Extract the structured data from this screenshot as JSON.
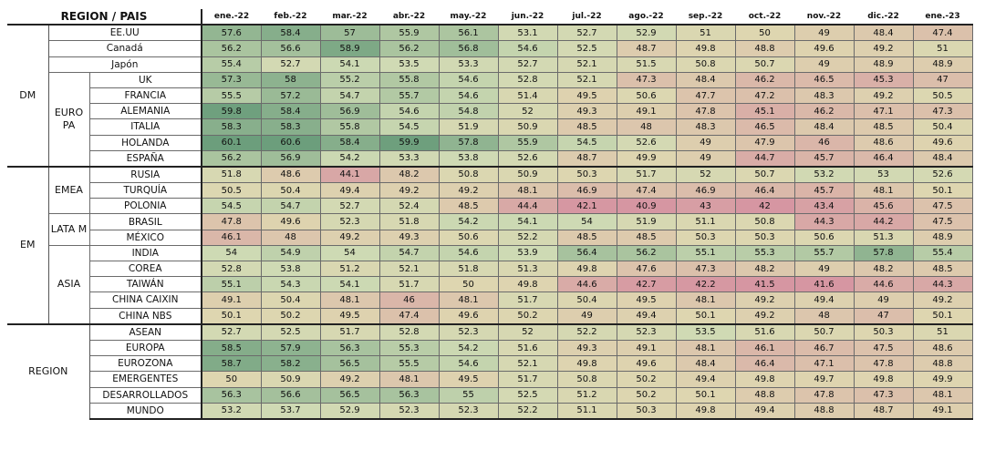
{
  "header": {
    "corner_label": "REGION / PAIS"
  },
  "months": [
    "ene.-22",
    "feb.-22",
    "mar.-22",
    "abr.-22",
    "may.-22",
    "jun.-22",
    "jul.-22",
    "ago.-22",
    "sep.-22",
    "oct.-22",
    "nov.-22",
    "dic.-22",
    "ene.-23"
  ],
  "groups": {
    "dm": "DM",
    "em": "EM",
    "region": "REGION",
    "europa": "EURO PA",
    "emea": "EMEA",
    "latam": "LATA M",
    "asia": "ASIA"
  },
  "rows": [
    {
      "name": "EE.UU",
      "values": [
        57.6,
        58.4,
        57,
        55.9,
        56.1,
        53.1,
        52.7,
        52.9,
        51,
        50,
        49,
        48.4,
        47.4
      ]
    },
    {
      "name": "Canadá",
      "values": [
        56.2,
        56.6,
        58.9,
        56.2,
        56.8,
        54.6,
        52.5,
        48.7,
        49.8,
        48.8,
        49.6,
        49.2,
        51
      ]
    },
    {
      "name": "Japón",
      "values": [
        55.4,
        52.7,
        54.1,
        53.5,
        53.3,
        52.7,
        52.1,
        51.5,
        50.8,
        50.7,
        49,
        48.9,
        48.9
      ]
    },
    {
      "name": "UK",
      "values": [
        57.3,
        58,
        55.2,
        55.8,
        54.6,
        52.8,
        52.1,
        47.3,
        48.4,
        46.2,
        46.5,
        45.3,
        47
      ]
    },
    {
      "name": "FRANCIA",
      "values": [
        55.5,
        57.2,
        54.7,
        55.7,
        54.6,
        51.4,
        49.5,
        50.6,
        47.7,
        47.2,
        48.3,
        49.2,
        50.5
      ]
    },
    {
      "name": "ALEMANIA",
      "values": [
        59.8,
        58.4,
        56.9,
        54.6,
        54.8,
        52,
        49.3,
        49.1,
        47.8,
        45.1,
        46.2,
        47.1,
        47.3
      ]
    },
    {
      "name": "ITALIA",
      "values": [
        58.3,
        58.3,
        55.8,
        54.5,
        51.9,
        50.9,
        48.5,
        48,
        48.3,
        46.5,
        48.4,
        48.5,
        50.4
      ]
    },
    {
      "name": "HOLANDA",
      "values": [
        60.1,
        60.6,
        58.4,
        59.9,
        57.8,
        55.9,
        54.5,
        52.6,
        49,
        47.9,
        46,
        48.6,
        49.6
      ]
    },
    {
      "name": "ESPAÑA",
      "values": [
        56.2,
        56.9,
        54.2,
        53.3,
        53.8,
        52.6,
        48.7,
        49.9,
        49,
        44.7,
        45.7,
        46.4,
        48.4
      ]
    },
    {
      "name": "RUSIA",
      "values": [
        51.8,
        48.6,
        44.1,
        48.2,
        50.8,
        50.9,
        50.3,
        51.7,
        52,
        50.7,
        53.2,
        53,
        52.6
      ]
    },
    {
      "name": "TURQUÍA",
      "values": [
        50.5,
        50.4,
        49.4,
        49.2,
        49.2,
        48.1,
        46.9,
        47.4,
        46.9,
        46.4,
        45.7,
        48.1,
        50.1
      ]
    },
    {
      "name": "POLONIA",
      "values": [
        54.5,
        54.7,
        52.7,
        52.4,
        48.5,
        44.4,
        42.1,
        40.9,
        43,
        42,
        43.4,
        45.6,
        47.5
      ]
    },
    {
      "name": "BRASIL",
      "values": [
        47.8,
        49.6,
        52.3,
        51.8,
        54.2,
        54.1,
        54,
        51.9,
        51.1,
        50.8,
        44.3,
        44.2,
        47.5
      ]
    },
    {
      "name": "MÉXICO",
      "values": [
        46.1,
        48,
        49.2,
        49.3,
        50.6,
        52.2,
        48.5,
        48.5,
        50.3,
        50.3,
        50.6,
        51.3,
        48.9
      ]
    },
    {
      "name": "INDIA",
      "values": [
        54,
        54.9,
        54,
        54.7,
        54.6,
        53.9,
        56.4,
        56.2,
        55.1,
        55.3,
        55.7,
        57.8,
        55.4
      ]
    },
    {
      "name": "COREA",
      "values": [
        52.8,
        53.8,
        51.2,
        52.1,
        51.8,
        51.3,
        49.8,
        47.6,
        47.3,
        48.2,
        49,
        48.2,
        48.5
      ]
    },
    {
      "name": "TAIWÁN",
      "values": [
        55.1,
        54.3,
        54.1,
        51.7,
        50,
        49.8,
        44.6,
        42.7,
        42.2,
        41.5,
        41.6,
        44.6,
        44.3
      ]
    },
    {
      "name": "CHINA CAIXIN",
      "values": [
        49.1,
        50.4,
        48.1,
        46,
        48.1,
        51.7,
        50.4,
        49.5,
        48.1,
        49.2,
        49.4,
        49,
        49.2
      ]
    },
    {
      "name": "CHINA NBS",
      "values": [
        50.1,
        50.2,
        49.5,
        47.4,
        49.6,
        50.2,
        49,
        49.4,
        50.1,
        49.2,
        48,
        47,
        50.1
      ]
    },
    {
      "name": "ASEAN",
      "values": [
        52.7,
        52.5,
        51.7,
        52.8,
        52.3,
        52,
        52.2,
        52.3,
        53.5,
        51.6,
        50.7,
        50.3,
        51
      ]
    },
    {
      "name": "EUROPA",
      "values": [
        58.5,
        57.9,
        56.3,
        55.3,
        54.2,
        51.6,
        49.3,
        49.1,
        48.1,
        46.1,
        46.7,
        47.5,
        48.6
      ]
    },
    {
      "name": "EUROZONA",
      "values": [
        58.7,
        58.2,
        56.5,
        55.5,
        54.6,
        52.1,
        49.8,
        49.6,
        48.4,
        46.4,
        47.1,
        47.8,
        48.8
      ]
    },
    {
      "name": "EMERGENTES",
      "values": [
        50,
        50.9,
        49.2,
        48.1,
        49.5,
        51.7,
        50.8,
        50.2,
        49.4,
        49.8,
        49.7,
        49.8,
        49.9
      ]
    },
    {
      "name": "DESARROLLADOS",
      "values": [
        56.3,
        56.6,
        56.5,
        56.3,
        55,
        52.5,
        51.2,
        50.2,
        50.1,
        48.8,
        47.8,
        47.3,
        48.1
      ]
    },
    {
      "name": "MUNDO",
      "values": [
        53.2,
        53.7,
        52.9,
        52.3,
        52.3,
        52.2,
        51.1,
        50.3,
        49.8,
        49.4,
        48.8,
        48.7,
        49.1
      ]
    }
  ]
}
